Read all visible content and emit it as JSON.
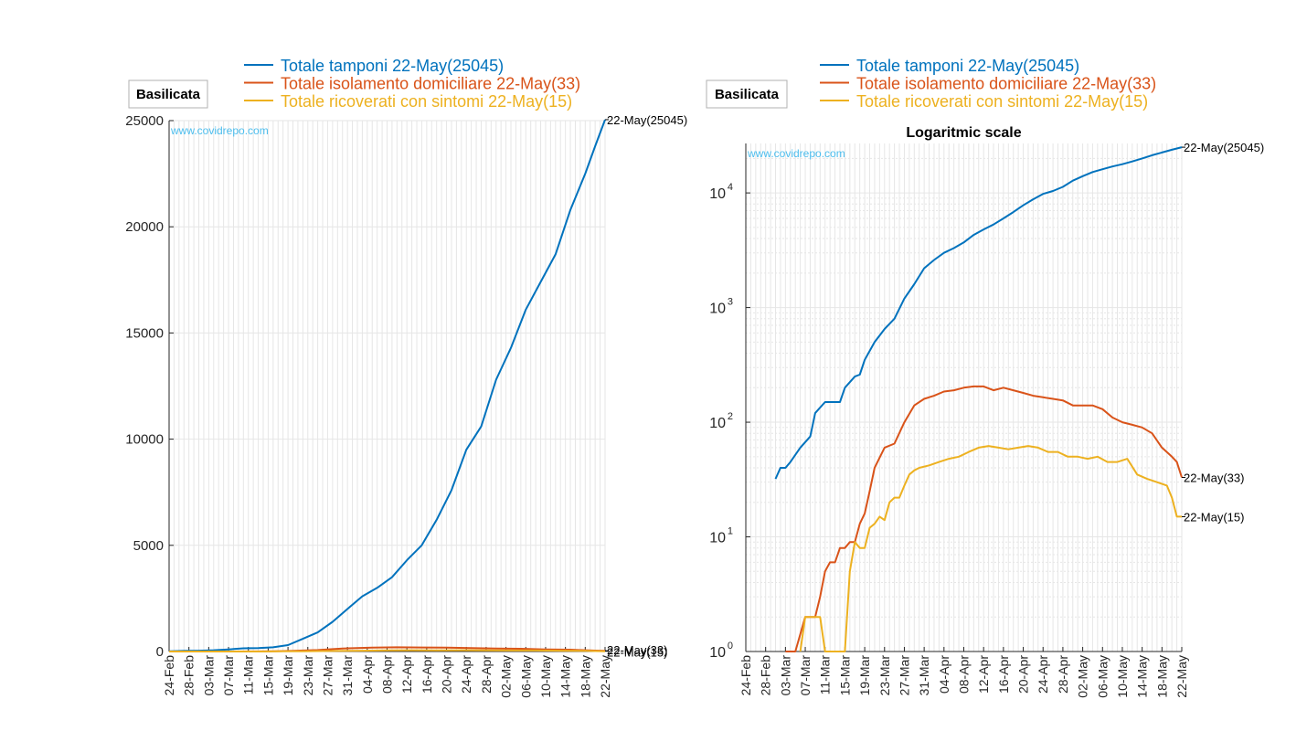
{
  "colors": {
    "tamponi": "#0072BD",
    "isolamento": "#D95319",
    "ricoverati": "#EDB120",
    "watermark": "#4DBEEE",
    "grid": "#e6e6e6",
    "axis": "#262626"
  },
  "chart_data": [
    {
      "type": "line",
      "region_label": "Basilicata",
      "title": "",
      "watermark": "www.covidrepo.com",
      "y_scale": "linear",
      "ylim": [
        0,
        25000
      ],
      "y_ticks": [
        "0",
        "5000",
        "10000",
        "15000",
        "20000",
        "25000"
      ],
      "y_tick_values": [
        0,
        5000,
        10000,
        15000,
        20000,
        25000
      ],
      "x_range": [
        "24-Feb",
        "22-May"
      ],
      "x_tick_labels": [
        "24-Feb",
        "28-Feb",
        "03-Mar",
        "07-Mar",
        "11-Mar",
        "15-Mar",
        "19-Mar",
        "23-Mar",
        "27-Mar",
        "31-Mar",
        "04-Apr",
        "08-Apr",
        "12-Apr",
        "16-Apr",
        "20-Apr",
        "24-Apr",
        "28-Apr",
        "02-May",
        "06-May",
        "10-May",
        "14-May",
        "18-May",
        "22-May"
      ],
      "grid": true,
      "legend_position": "top",
      "legend": [
        "Totale tamponi 22-May(25045)",
        "Totale isolamento domiciliare 22-May(33)",
        "Totale ricoverati con sintomi 22-May(15)"
      ],
      "end_labels": [
        "22-May(25045)",
        "22-May(33)",
        "22-May(15)"
      ],
      "series": [
        {
          "key": "tamponi",
          "dates": [
            "24-Feb",
            "27-Feb",
            "01-Mar",
            "04-Mar",
            "07-Mar",
            "10-Mar",
            "13-Mar",
            "16-Mar",
            "19-Mar",
            "22-Mar",
            "25-Mar",
            "28-Mar",
            "31-Mar",
            "03-Apr",
            "06-Apr",
            "09-Apr",
            "12-Apr",
            "15-Apr",
            "18-Apr",
            "21-Apr",
            "24-Apr",
            "27-Apr",
            "30-Apr",
            "03-May",
            "06-May",
            "09-May",
            "12-May",
            "15-May",
            "18-May",
            "20-May",
            "22-May"
          ],
          "values": [
            10,
            30,
            40,
            60,
            100,
            150,
            160,
            200,
            300,
            600,
            900,
            1400,
            2000,
            2600,
            3000,
            3500,
            4300,
            5000,
            6200,
            7600,
            9500,
            10600,
            12800,
            14300,
            16100,
            17400,
            18700,
            20800,
            22500,
            23800,
            25045
          ]
        },
        {
          "key": "isolamento",
          "dates": [
            "24-Feb",
            "04-Mar",
            "07-Mar",
            "12-Mar",
            "16-Mar",
            "20-Mar",
            "25-Mar",
            "30-Mar",
            "05-Apr",
            "10-Apr",
            "15-Apr",
            "20-Apr",
            "25-Apr",
            "30-Apr",
            "05-May",
            "10-May",
            "15-May",
            "20-May",
            "22-May"
          ],
          "values": [
            0,
            1,
            2,
            6,
            9,
            30,
            70,
            140,
            180,
            200,
            190,
            180,
            160,
            140,
            130,
            100,
            85,
            45,
            33
          ]
        },
        {
          "key": "ricoverati",
          "dates": [
            "24-Feb",
            "06-Mar",
            "10-Mar",
            "14-Mar",
            "18-Mar",
            "22-Mar",
            "28-Mar",
            "03-Apr",
            "08-Apr",
            "13-Apr",
            "18-Apr",
            "23-Apr",
            "28-Apr",
            "03-May",
            "08-May",
            "13-May",
            "18-May",
            "20-May",
            "22-May"
          ],
          "values": [
            0,
            2,
            2,
            1,
            8,
            13,
            25,
            40,
            55,
            62,
            58,
            60,
            52,
            48,
            48,
            40,
            30,
            22,
            15
          ]
        }
      ]
    },
    {
      "type": "line",
      "region_label": "Basilicata",
      "title": "Logaritmic scale",
      "watermark": "www.covidrepo.com",
      "y_scale": "log",
      "ylim": [
        1,
        27000
      ],
      "y_ticks": [
        "10",
        "10",
        "10",
        "10",
        "10"
      ],
      "y_tick_exponents": [
        "0",
        "1",
        "2",
        "3",
        "4"
      ],
      "y_tick_values": [
        1,
        10,
        100,
        1000,
        10000
      ],
      "x_range": [
        "24-Feb",
        "22-May"
      ],
      "x_tick_labels": [
        "24-Feb",
        "28-Feb",
        "03-Mar",
        "07-Mar",
        "11-Mar",
        "15-Mar",
        "19-Mar",
        "23-Mar",
        "27-Mar",
        "31-Mar",
        "04-Apr",
        "08-Apr",
        "12-Apr",
        "16-Apr",
        "20-Apr",
        "24-Apr",
        "28-Apr",
        "02-May",
        "06-May",
        "10-May",
        "14-May",
        "18-May",
        "22-May"
      ],
      "grid": true,
      "legend_position": "top",
      "legend": [
        "Totale tamponi 22-May(25045)",
        "Totale isolamento domiciliare 22-May(33)",
        "Totale ricoverati con sintomi 22-May(15)"
      ],
      "end_labels": [
        "22-May(25045)",
        "22-May(33)",
        "22-May(15)"
      ],
      "series": [
        {
          "key": "tamponi",
          "dates": [
            "01-Mar",
            "02-Mar",
            "03-Mar",
            "04-Mar",
            "06-Mar",
            "08-Mar",
            "09-Mar",
            "11-Mar",
            "14-Mar",
            "15-Mar",
            "17-Mar",
            "18-Mar",
            "19-Mar",
            "21-Mar",
            "23-Mar",
            "25-Mar",
            "27-Mar",
            "29-Mar",
            "31-Mar",
            "02-Apr",
            "04-Apr",
            "06-Apr",
            "08-Apr",
            "10-Apr",
            "12-Apr",
            "14-Apr",
            "16-Apr",
            "18-Apr",
            "20-Apr",
            "22-Apr",
            "24-Apr",
            "26-Apr",
            "28-Apr",
            "30-Apr",
            "02-May",
            "04-May",
            "06-May",
            "08-May",
            "10-May",
            "12-May",
            "14-May",
            "16-May",
            "18-May",
            "20-May",
            "22-May"
          ],
          "values": [
            32,
            40,
            40,
            45,
            60,
            75,
            120,
            150,
            150,
            200,
            250,
            260,
            350,
            500,
            650,
            800,
            1200,
            1600,
            2200,
            2600,
            3000,
            3300,
            3700,
            4300,
            4800,
            5300,
            6000,
            6800,
            7800,
            8800,
            9800,
            10400,
            11300,
            12800,
            14000,
            15200,
            16100,
            17000,
            17800,
            18800,
            20000,
            21300,
            22500,
            23800,
            25045
          ]
        },
        {
          "key": "isolamento",
          "dates": [
            "03-Mar",
            "05-Mar",
            "07-Mar",
            "08-Mar",
            "09-Mar",
            "10-Mar",
            "11-Mar",
            "12-Mar",
            "13-Mar",
            "14-Mar",
            "15-Mar",
            "16-Mar",
            "17-Mar",
            "18-Mar",
            "19-Mar",
            "20-Mar",
            "21-Mar",
            "23-Mar",
            "25-Mar",
            "27-Mar",
            "29-Mar",
            "31-Mar",
            "02-Apr",
            "04-Apr",
            "06-Apr",
            "08-Apr",
            "10-Apr",
            "12-Apr",
            "14-Apr",
            "16-Apr",
            "18-Apr",
            "20-Apr",
            "22-Apr",
            "24-Apr",
            "26-Apr",
            "28-Apr",
            "30-Apr",
            "02-May",
            "04-May",
            "06-May",
            "08-May",
            "10-May",
            "12-May",
            "14-May",
            "16-May",
            "18-May",
            "20-May",
            "21-May",
            "22-May"
          ],
          "values": [
            1,
            1,
            2,
            2,
            2,
            3,
            5,
            6,
            6,
            8,
            8,
            9,
            9,
            13,
            16,
            25,
            40,
            60,
            65,
            100,
            140,
            160,
            170,
            185,
            190,
            200,
            205,
            205,
            190,
            200,
            190,
            180,
            170,
            165,
            160,
            155,
            140,
            140,
            140,
            130,
            110,
            100,
            95,
            90,
            80,
            60,
            50,
            45,
            33
          ]
        },
        {
          "key": "ricoverati",
          "dates": [
            "06-Mar",
            "07-Mar",
            "08-Mar",
            "09-Mar",
            "10-Mar",
            "11-Mar",
            "12-Mar",
            "14-Mar",
            "15-Mar",
            "16-Mar",
            "17-Mar",
            "18-Mar",
            "19-Mar",
            "20-Mar",
            "21-Mar",
            "22-Mar",
            "23-Mar",
            "24-Mar",
            "25-Mar",
            "26-Mar",
            "27-Mar",
            "28-Mar",
            "29-Mar",
            "30-Mar",
            "01-Apr",
            "03-Apr",
            "05-Apr",
            "07-Apr",
            "09-Apr",
            "11-Apr",
            "13-Apr",
            "15-Apr",
            "17-Apr",
            "19-Apr",
            "21-Apr",
            "23-Apr",
            "25-Apr",
            "27-Apr",
            "29-Apr",
            "01-May",
            "03-May",
            "05-May",
            "07-May",
            "09-May",
            "11-May",
            "13-May",
            "15-May",
            "17-May",
            "19-May",
            "20-May",
            "21-May",
            "22-May"
          ],
          "values": [
            1,
            2,
            2,
            2,
            2,
            1,
            1,
            1,
            1,
            5,
            9,
            8,
            8,
            12,
            13,
            15,
            14,
            20,
            22,
            22,
            28,
            35,
            38,
            40,
            42,
            45,
            48,
            50,
            55,
            60,
            62,
            60,
            58,
            60,
            62,
            60,
            55,
            55,
            50,
            50,
            48,
            50,
            45,
            45,
            48,
            35,
            32,
            30,
            28,
            22,
            15,
            15
          ]
        }
      ]
    }
  ]
}
